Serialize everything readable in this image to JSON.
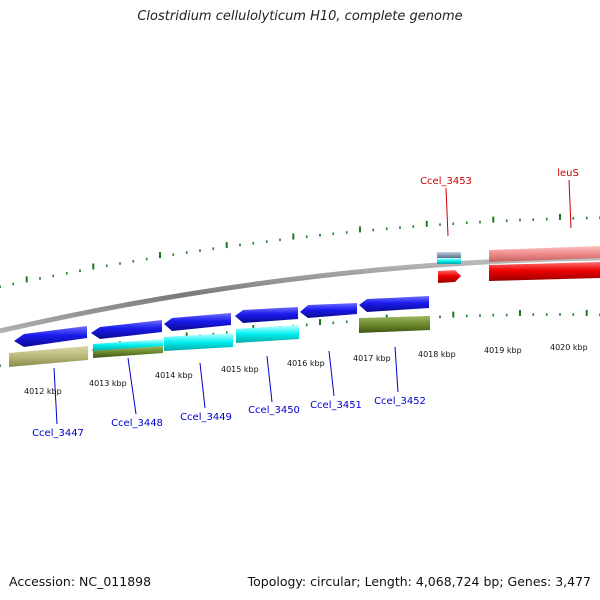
{
  "title": "Clostridium cellulolyticum H10, complete genome",
  "footer": {
    "accession": "Accession: NC_011898",
    "topology": "Topology: circular; Length: 4,068,724 bp; Genes: 3,477"
  },
  "kbp_labels": [
    "4012 kbp",
    "4013 kbp",
    "4014 kbp",
    "4015 kbp",
    "4016 kbp",
    "4017 kbp",
    "4018 kbp",
    "4019 kbp",
    "4020 kbp"
  ],
  "gene_labels": [
    {
      "name": "Ccel_3447",
      "color": "#0000cc"
    },
    {
      "name": "Ccel_3448",
      "color": "#0000cc"
    },
    {
      "name": "Ccel_3449",
      "color": "#0000cc"
    },
    {
      "name": "Ccel_3450",
      "color": "#0000cc"
    },
    {
      "name": "Ccel_3451",
      "color": "#0000cc"
    },
    {
      "name": "Ccel_3452",
      "color": "#0000cc"
    },
    {
      "name": "Ccel_3453",
      "color": "#cc0000"
    },
    {
      "name": "leuS",
      "color": "#cc0000"
    }
  ],
  "colors": {
    "backbone": "#8a8a8a",
    "tick": "#1e7a1e",
    "gene_reverse": "#1a1aee",
    "gene_forward": "#ee0000",
    "cog_cyan": "#00f0f0",
    "cog_olive": "#6e8a30",
    "cog_khaki": "#b8b878",
    "cog_pink": "#f08a8a",
    "cog_steel": "#8aa0b8"
  }
}
